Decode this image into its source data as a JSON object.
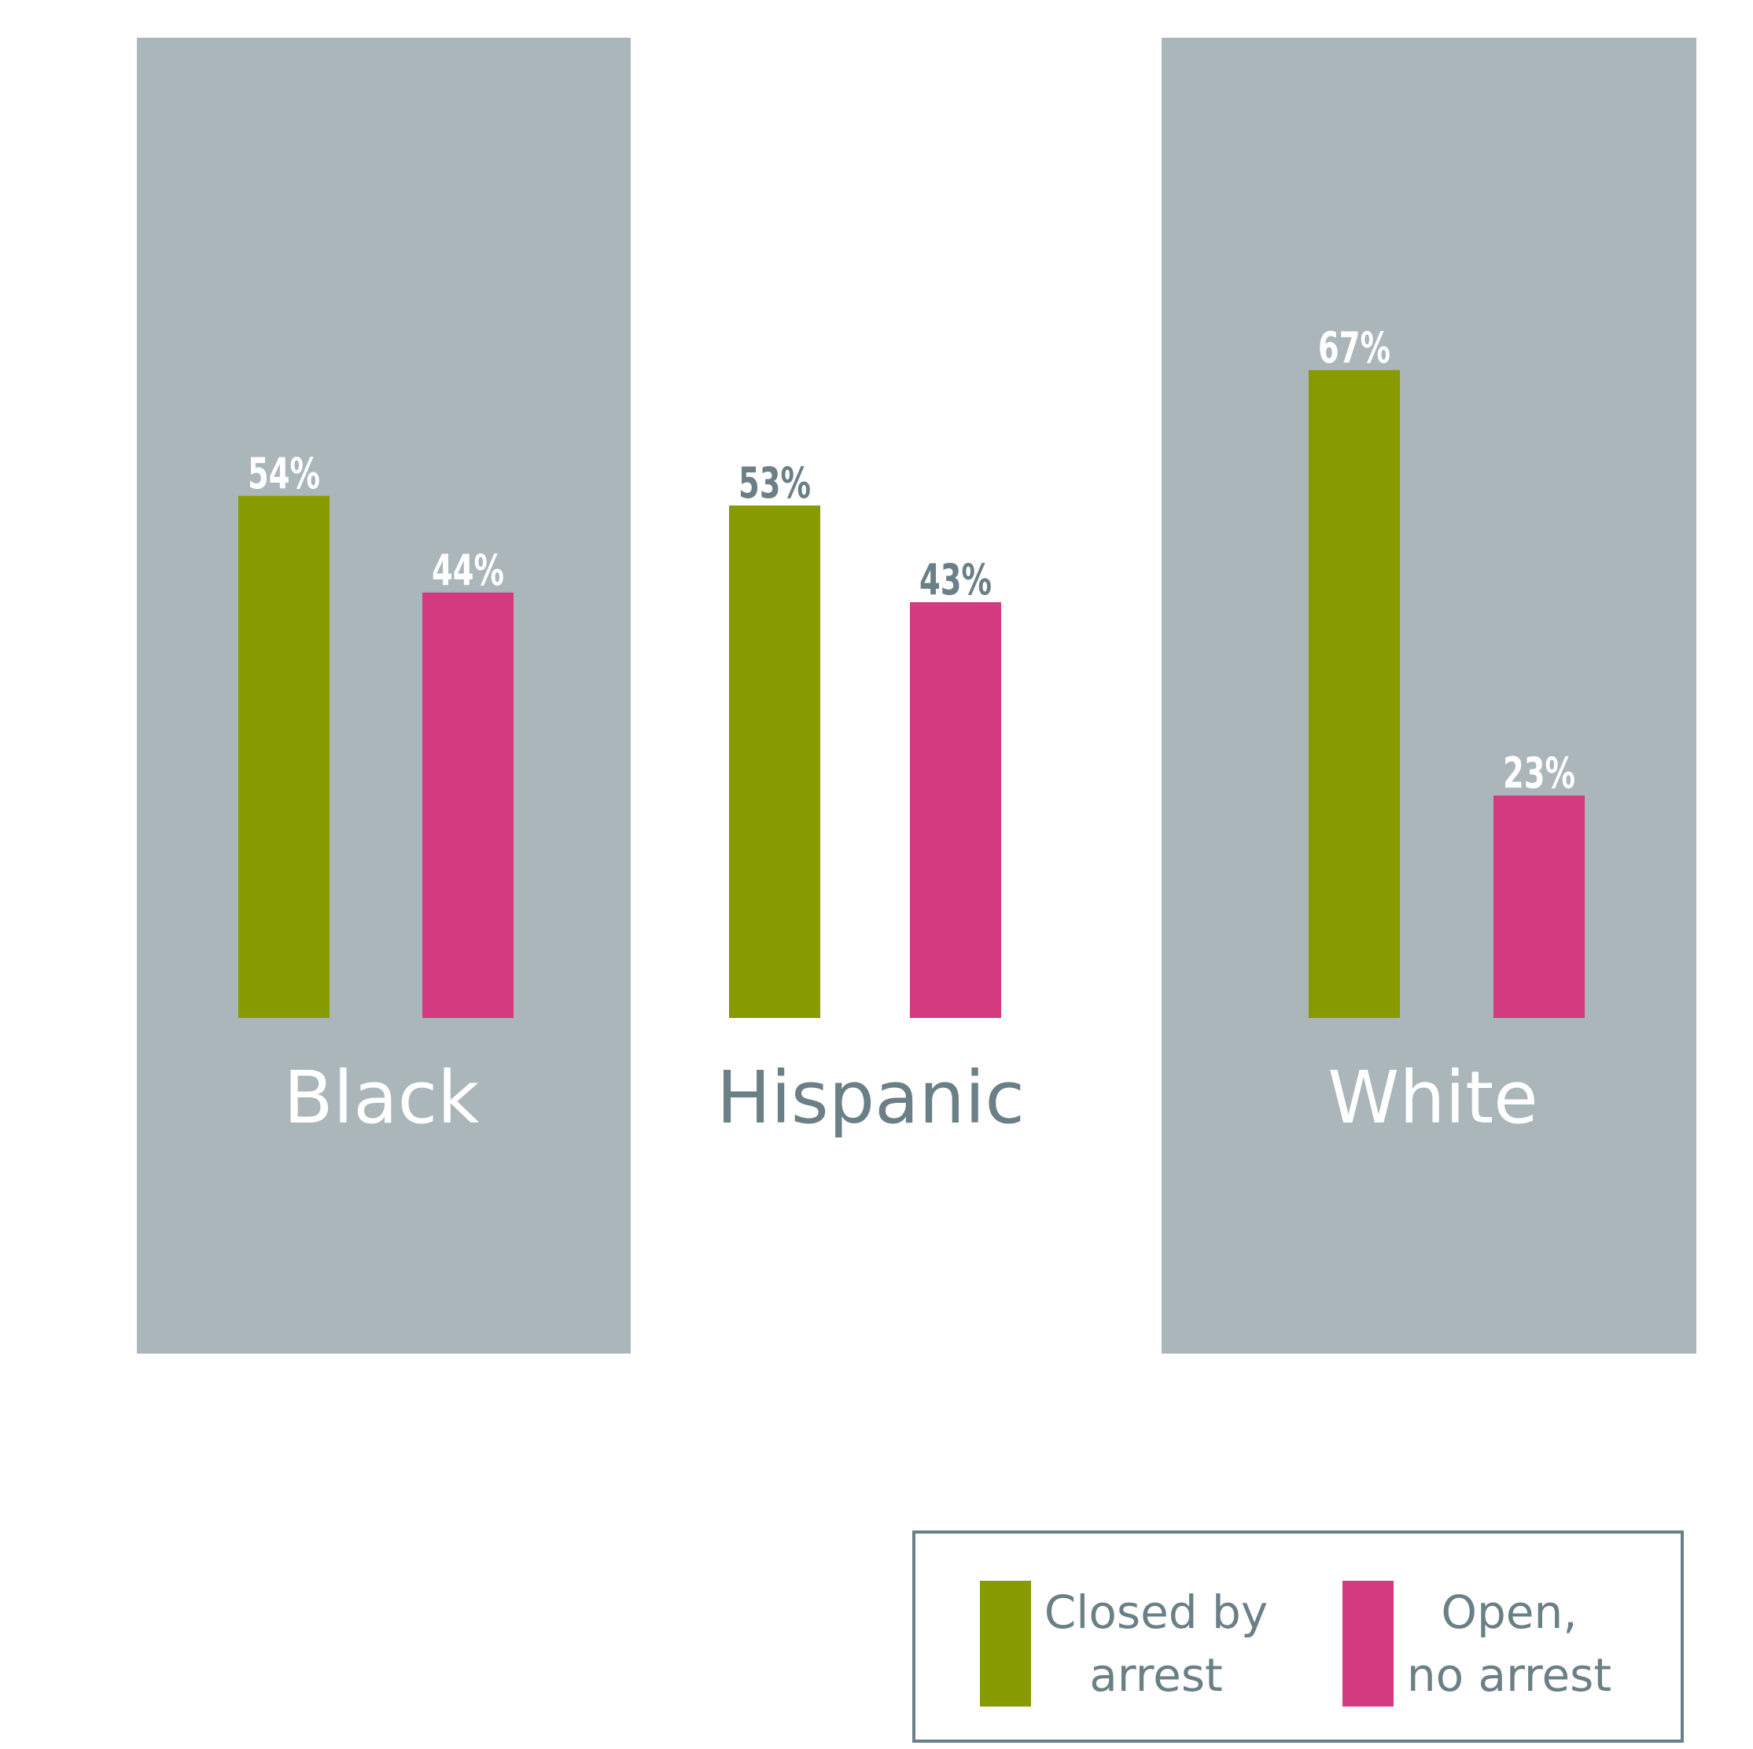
{
  "chart_data": {
    "type": "bar",
    "title": "",
    "xlabel": "",
    "ylabel": "",
    "ylim": [
      0,
      100
    ],
    "grid": false,
    "legend_position": "bottom-right",
    "categories": [
      "Black",
      "Hispanic",
      "White"
    ],
    "highlighted_categories": [
      "Black",
      "White"
    ],
    "series": [
      {
        "name": "Closed by arrest",
        "values": [
          54,
          53,
          67
        ],
        "labels": [
          "54%",
          "53%",
          "67%"
        ]
      },
      {
        "name": "Open, no arrest",
        "values": [
          44,
          43,
          23
        ],
        "labels": [
          "44%",
          "43%",
          "23%"
        ]
      }
    ]
  },
  "legend": {
    "items": [
      {
        "label": "Closed by\narrest",
        "color": "#879a00"
      },
      {
        "label": "Open,\nno arrest",
        "color": "#d33a7f"
      }
    ]
  },
  "colors": {
    "closed": "#879a00",
    "open": "#d33a7f",
    "panel": "#aab6b9",
    "text_dark": "#6b7f87",
    "text_light": "#ffffff"
  }
}
